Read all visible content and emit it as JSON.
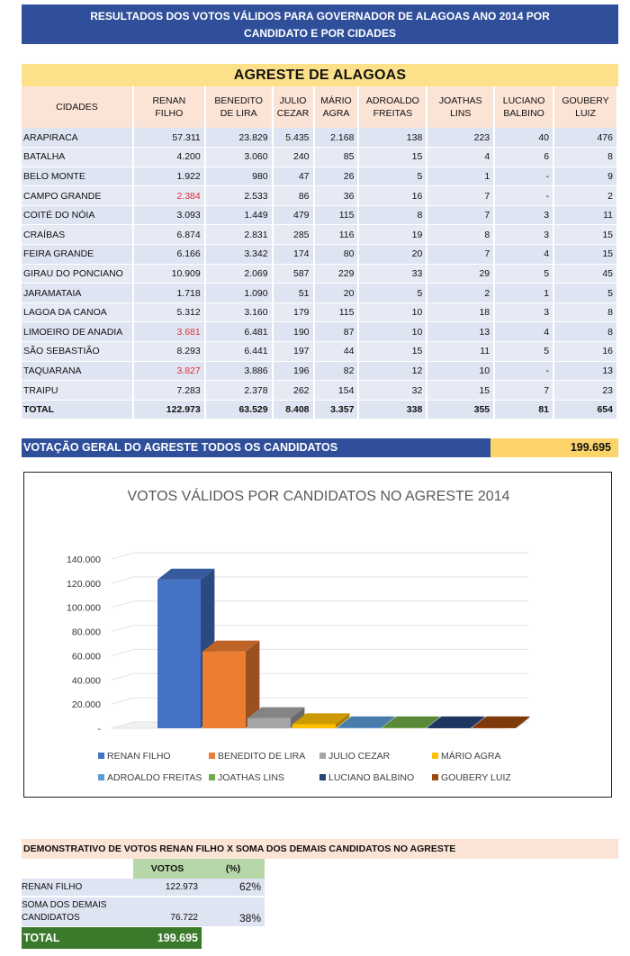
{
  "header": {
    "line1": "RESULTADOS DOS VOTOS VÁLIDOS PARA GOVERNADOR DE ALAGOAS  ANO 2014 POR",
    "line2": "CANDIDATO E POR CIDADES"
  },
  "region_title": "AGRESTE DE ALAGOAS",
  "table": {
    "headers": [
      [
        "CIDADES"
      ],
      [
        "RENAN",
        "FILHO"
      ],
      [
        "BENEDITO",
        "DE LIRA"
      ],
      [
        "JULIO",
        "CEZAR"
      ],
      [
        "MÁRIO",
        "AGRA"
      ],
      [
        "ADROALDO",
        "FREITAS"
      ],
      [
        "JOATHAS",
        "LINS"
      ],
      [
        "LUCIANO",
        "BALBINO"
      ],
      [
        "GOUBERY",
        "LUIZ"
      ]
    ],
    "rows": [
      {
        "city": "ARAPIRACA",
        "values": [
          "57.311",
          "23.829",
          "5.435",
          "2.168",
          "138",
          "223",
          "40",
          "476"
        ],
        "red": false
      },
      {
        "city": "BATALHA",
        "values": [
          "4.200",
          "3.060",
          "240",
          "85",
          "15",
          "4",
          "6",
          "8"
        ],
        "red": false
      },
      {
        "city": "BELO MONTE",
        "values": [
          "1.922",
          "980",
          "47",
          "26",
          "5",
          "1",
          "-",
          "9"
        ],
        "red": false
      },
      {
        "city": "CAMPO GRANDE",
        "values": [
          "2.384",
          "2.533",
          "86",
          "36",
          "16",
          "7",
          "-",
          "2"
        ],
        "red": true
      },
      {
        "city": "COITÉ DO NÓIA",
        "values": [
          "3.093",
          "1.449",
          "479",
          "115",
          "8",
          "7",
          "3",
          "11"
        ],
        "red": false
      },
      {
        "city": "CRAÍBAS",
        "values": [
          "6.874",
          "2.831",
          "285",
          "116",
          "19",
          "8",
          "3",
          "15"
        ],
        "red": false
      },
      {
        "city": "FEIRA GRANDE",
        "values": [
          "6.166",
          "3.342",
          "174",
          "80",
          "20",
          "7",
          "4",
          "15"
        ],
        "red": false
      },
      {
        "city": "GIRAU DO PONCIANO",
        "values": [
          "10.909",
          "2.069",
          "587",
          "229",
          "33",
          "29",
          "5",
          "45"
        ],
        "red": false
      },
      {
        "city": "JARAMATAIA",
        "values": [
          "1.718",
          "1.090",
          "51",
          "20",
          "5",
          "2",
          "1",
          "5"
        ],
        "red": false
      },
      {
        "city": "LAGOA DA CANOA",
        "values": [
          "5.312",
          "3.160",
          "179",
          "115",
          "10",
          "18",
          "3",
          "8"
        ],
        "red": false
      },
      {
        "city": "LIMOEIRO DE ANADIA",
        "values": [
          "3.681",
          "6.481",
          "190",
          "87",
          "10",
          "13",
          "4",
          "8"
        ],
        "red": true
      },
      {
        "city": "SÃO SEBASTIÃO",
        "values": [
          "8.293",
          "6.441",
          "197",
          "44",
          "15",
          "11",
          "5",
          "16"
        ],
        "red": false
      },
      {
        "city": "TAQUARANA",
        "values": [
          "3.827",
          "3.886",
          "196",
          "82",
          "12",
          "10",
          "-",
          "13"
        ],
        "red": true
      },
      {
        "city": "TRAIPU",
        "values": [
          "7.283",
          "2.378",
          "262",
          "154",
          "32",
          "15",
          "7",
          "23"
        ],
        "red": false
      }
    ],
    "total": {
      "label": "TOTAL",
      "values": [
        "122.973",
        "63.529",
        "8.408",
        "3.357",
        "338",
        "355",
        "81",
        "654"
      ]
    }
  },
  "general": {
    "label": "VOTAÇÃO GERAL DO AGRESTE TODOS OS CANDIDATOS",
    "value": "199.695"
  },
  "chart_data": {
    "type": "bar",
    "title": "VOTOS VÁLIDOS POR CANDIDATOS NO AGRESTE 2014",
    "categories": [
      "RENAN FILHO",
      "BENEDITO DE LIRA",
      "JULIO CEZAR",
      "MÁRIO AGRA",
      "ADROALDO FREITAS",
      "JOATHAS LINS",
      "LUCIANO BALBINO",
      "GOUBERY LUIZ"
    ],
    "values": [
      122973,
      63529,
      8408,
      3357,
      338,
      355,
      81,
      654
    ],
    "colors": [
      "#4472c4",
      "#ed7d31",
      "#a5a5a5",
      "#ffc000",
      "#5b9bd5",
      "#70ad47",
      "#264478",
      "#9e480e"
    ],
    "ylim": [
      0,
      140000
    ],
    "yticks": [
      "140.000",
      "120.000",
      "100.000",
      "80.000",
      "60.000",
      "40.000",
      "20.000",
      "-"
    ],
    "legend_position": "bottom",
    "grid": true
  },
  "demo": {
    "title": "DEMONSTRATIVO DE VOTOS  RENAN FILHO X SOMA DOS DEMAIS CANDIDATOS NO AGRESTE",
    "col_votes": "VOTOS",
    "col_pct": "(%)",
    "rows": [
      {
        "label1": "RENAN FILHO",
        "label2": "",
        "votes": "122.973",
        "pct": "62%"
      },
      {
        "label1": "SOMA DOS DEMAIS",
        "label2": "CANDIDATOS",
        "votes": "76.722",
        "pct": "38%"
      }
    ],
    "total_label": "TOTAL",
    "total_value": "199.695"
  }
}
